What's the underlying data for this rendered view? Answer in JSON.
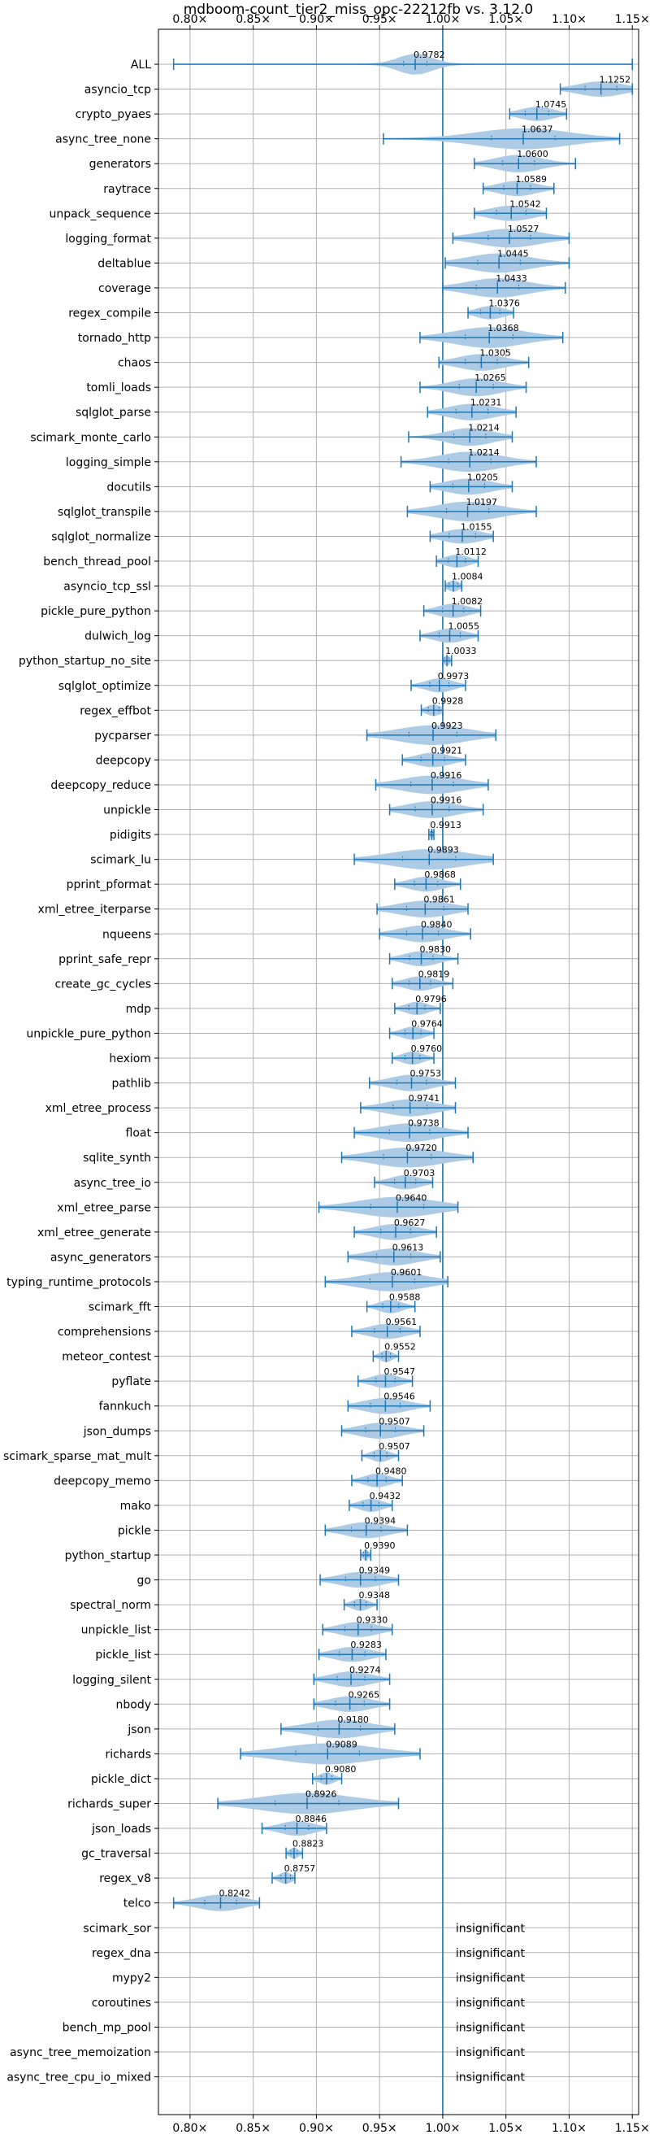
{
  "chart_data": {
    "type": "violin",
    "title": "mdboom-count_tier2_miss_opc-22212fb vs. 3.12.0",
    "xlim": [
      0.775,
      1.155
    ],
    "x_ticks": [
      {
        "value": 0.8,
        "label": "0.80×"
      },
      {
        "value": 0.85,
        "label": "0.85×"
      },
      {
        "value": 0.9,
        "label": "0.90×"
      },
      {
        "value": 0.95,
        "label": "0.95×"
      },
      {
        "value": 1.0,
        "label": "1.00×"
      },
      {
        "value": 1.05,
        "label": "1.05×"
      },
      {
        "value": 1.1,
        "label": "1.10×"
      },
      {
        "value": 1.15,
        "label": "1.15×"
      }
    ],
    "reference_line": 1.0,
    "grid": true,
    "insignificant_text": "insignificant",
    "benchmarks": [
      {
        "name": "ALL",
        "value": 0.9782,
        "min": 0.787,
        "max": 1.15,
        "w": 0.022
      },
      {
        "name": "asyncio_tcp",
        "value": 1.1252,
        "min": 1.093,
        "max": 1.15,
        "w": 0.03
      },
      {
        "name": "crypto_pyaes",
        "value": 1.0745,
        "min": 1.053,
        "max": 1.098,
        "w": 0.022
      },
      {
        "name": "async_tree_none",
        "value": 1.0637,
        "min": 0.953,
        "max": 1.14,
        "w": 0.06
      },
      {
        "name": "generators",
        "value": 1.06,
        "min": 1.025,
        "max": 1.105,
        "w": 0.03
      },
      {
        "name": "raytrace",
        "value": 1.0589,
        "min": 1.032,
        "max": 1.088,
        "w": 0.025
      },
      {
        "name": "unpack_sequence",
        "value": 1.0542,
        "min": 1.025,
        "max": 1.082,
        "w": 0.028
      },
      {
        "name": "logging_format",
        "value": 1.0527,
        "min": 1.008,
        "max": 1.1,
        "w": 0.04
      },
      {
        "name": "deltablue",
        "value": 1.0445,
        "min": 1.002,
        "max": 1.1,
        "w": 0.04
      },
      {
        "name": "coverage",
        "value": 1.0433,
        "min": 1.0,
        "max": 1.097,
        "w": 0.04
      },
      {
        "name": "regex_compile",
        "value": 1.0376,
        "min": 1.02,
        "max": 1.056,
        "w": 0.018
      },
      {
        "name": "tornado_http",
        "value": 1.0368,
        "min": 0.982,
        "max": 1.095,
        "w": 0.045
      },
      {
        "name": "chaos",
        "value": 1.0305,
        "min": 0.997,
        "max": 1.068,
        "w": 0.03
      },
      {
        "name": "tomli_loads",
        "value": 1.0265,
        "min": 0.982,
        "max": 1.066,
        "w": 0.032
      },
      {
        "name": "sqlglot_parse",
        "value": 1.0231,
        "min": 0.988,
        "max": 1.058,
        "w": 0.03
      },
      {
        "name": "scimark_monte_carlo",
        "value": 1.0214,
        "min": 0.973,
        "max": 1.055,
        "w": 0.03
      },
      {
        "name": "logging_simple",
        "value": 1.0214,
        "min": 0.967,
        "max": 1.074,
        "w": 0.04
      },
      {
        "name": "docutils",
        "value": 1.0205,
        "min": 0.99,
        "max": 1.055,
        "w": 0.03
      },
      {
        "name": "sqlglot_transpile",
        "value": 1.0197,
        "min": 0.972,
        "max": 1.074,
        "w": 0.04
      },
      {
        "name": "sqlglot_normalize",
        "value": 1.0155,
        "min": 0.99,
        "max": 1.04,
        "w": 0.025
      },
      {
        "name": "bench_thread_pool",
        "value": 1.0112,
        "min": 0.995,
        "max": 1.028,
        "w": 0.016
      },
      {
        "name": "asyncio_tcp_ssl",
        "value": 1.0084,
        "min": 1.002,
        "max": 1.015,
        "w": 0.008
      },
      {
        "name": "pickle_pure_python",
        "value": 1.0082,
        "min": 0.985,
        "max": 1.03,
        "w": 0.02
      },
      {
        "name": "dulwich_log",
        "value": 1.0055,
        "min": 0.982,
        "max": 1.028,
        "w": 0.02
      },
      {
        "name": "python_startup_no_site",
        "value": 1.0033,
        "min": 1.0,
        "max": 1.007,
        "w": 0.004
      },
      {
        "name": "sqlglot_optimize",
        "value": 0.9973,
        "min": 0.975,
        "max": 1.018,
        "w": 0.018
      },
      {
        "name": "regex_effbot",
        "value": 0.9928,
        "min": 0.983,
        "max": 1.0,
        "w": 0.01
      },
      {
        "name": "pycparser",
        "value": 0.9923,
        "min": 0.94,
        "max": 1.042,
        "w": 0.045
      },
      {
        "name": "deepcopy",
        "value": 0.9921,
        "min": 0.968,
        "max": 1.018,
        "w": 0.022
      },
      {
        "name": "deepcopy_reduce",
        "value": 0.9916,
        "min": 0.947,
        "max": 1.036,
        "w": 0.04
      },
      {
        "name": "unpickle",
        "value": 0.9916,
        "min": 0.958,
        "max": 1.032,
        "w": 0.032
      },
      {
        "name": "pidigits",
        "value": 0.9913,
        "min": 0.989,
        "max": 0.993,
        "w": 0.002
      },
      {
        "name": "scimark_lu",
        "value": 0.9893,
        "min": 0.93,
        "max": 1.04,
        "w": 0.05
      },
      {
        "name": "pprint_pformat",
        "value": 0.9868,
        "min": 0.962,
        "max": 1.014,
        "w": 0.022
      },
      {
        "name": "xml_etree_iterparse",
        "value": 0.9861,
        "min": 0.948,
        "max": 1.02,
        "w": 0.035
      },
      {
        "name": "nqueens",
        "value": 0.984,
        "min": 0.95,
        "max": 1.022,
        "w": 0.03
      },
      {
        "name": "pprint_safe_repr",
        "value": 0.983,
        "min": 0.958,
        "max": 1.012,
        "w": 0.022
      },
      {
        "name": "create_gc_cycles",
        "value": 0.9819,
        "min": 0.96,
        "max": 1.008,
        "w": 0.02
      },
      {
        "name": "mdp",
        "value": 0.9796,
        "min": 0.962,
        "max": 0.998,
        "w": 0.015
      },
      {
        "name": "unpickle_pure_python",
        "value": 0.9764,
        "min": 0.958,
        "max": 0.993,
        "w": 0.015
      },
      {
        "name": "hexiom",
        "value": 0.976,
        "min": 0.96,
        "max": 0.993,
        "w": 0.014
      },
      {
        "name": "pathlib",
        "value": 0.9753,
        "min": 0.942,
        "max": 1.01,
        "w": 0.028
      },
      {
        "name": "xml_etree_process",
        "value": 0.9741,
        "min": 0.935,
        "max": 1.01,
        "w": 0.032
      },
      {
        "name": "float",
        "value": 0.9738,
        "min": 0.93,
        "max": 1.02,
        "w": 0.038
      },
      {
        "name": "sqlite_synth",
        "value": 0.972,
        "min": 0.92,
        "max": 1.024,
        "w": 0.045
      },
      {
        "name": "async_tree_io",
        "value": 0.9703,
        "min": 0.946,
        "max": 0.992,
        "w": 0.02
      },
      {
        "name": "xml_etree_parse",
        "value": 0.964,
        "min": 0.902,
        "max": 1.012,
        "w": 0.05
      },
      {
        "name": "xml_etree_generate",
        "value": 0.9627,
        "min": 0.93,
        "max": 0.995,
        "w": 0.028
      },
      {
        "name": "async_generators",
        "value": 0.9613,
        "min": 0.925,
        "max": 0.998,
        "w": 0.032
      },
      {
        "name": "typing_runtime_protocols",
        "value": 0.9601,
        "min": 0.907,
        "max": 1.004,
        "w": 0.042
      },
      {
        "name": "scimark_fft",
        "value": 0.9588,
        "min": 0.94,
        "max": 0.978,
        "w": 0.015
      },
      {
        "name": "comprehensions",
        "value": 0.9561,
        "min": 0.928,
        "max": 0.982,
        "w": 0.024
      },
      {
        "name": "meteor_contest",
        "value": 0.9552,
        "min": 0.945,
        "max": 0.965,
        "w": 0.008
      },
      {
        "name": "pyflate",
        "value": 0.9547,
        "min": 0.933,
        "max": 0.976,
        "w": 0.018
      },
      {
        "name": "fannkuch",
        "value": 0.9546,
        "min": 0.925,
        "max": 0.99,
        "w": 0.028
      },
      {
        "name": "json_dumps",
        "value": 0.9507,
        "min": 0.92,
        "max": 0.985,
        "w": 0.028
      },
      {
        "name": "scimark_sparse_mat_mult",
        "value": 0.9507,
        "min": 0.936,
        "max": 0.965,
        "w": 0.012
      },
      {
        "name": "deepcopy_memo",
        "value": 0.948,
        "min": 0.928,
        "max": 0.968,
        "w": 0.017
      },
      {
        "name": "mako",
        "value": 0.9432,
        "min": 0.926,
        "max": 0.96,
        "w": 0.015
      },
      {
        "name": "pickle",
        "value": 0.9394,
        "min": 0.907,
        "max": 0.972,
        "w": 0.028
      },
      {
        "name": "python_startup",
        "value": 0.939,
        "min": 0.935,
        "max": 0.943,
        "w": 0.004
      },
      {
        "name": "go",
        "value": 0.9349,
        "min": 0.903,
        "max": 0.965,
        "w": 0.028
      },
      {
        "name": "spectral_norm",
        "value": 0.9348,
        "min": 0.922,
        "max": 0.948,
        "w": 0.011
      },
      {
        "name": "unpickle_list",
        "value": 0.933,
        "min": 0.905,
        "max": 0.96,
        "w": 0.025
      },
      {
        "name": "pickle_list",
        "value": 0.9283,
        "min": 0.902,
        "max": 0.955,
        "w": 0.024
      },
      {
        "name": "logging_silent",
        "value": 0.9274,
        "min": 0.898,
        "max": 0.958,
        "w": 0.026
      },
      {
        "name": "nbody",
        "value": 0.9265,
        "min": 0.898,
        "max": 0.958,
        "w": 0.027
      },
      {
        "name": "json",
        "value": 0.918,
        "min": 0.872,
        "max": 0.962,
        "w": 0.04
      },
      {
        "name": "richards",
        "value": 0.9089,
        "min": 0.84,
        "max": 0.982,
        "w": 0.06
      },
      {
        "name": "pickle_dict",
        "value": 0.908,
        "min": 0.897,
        "max": 0.92,
        "w": 0.01
      },
      {
        "name": "richards_super",
        "value": 0.8926,
        "min": 0.822,
        "max": 0.965,
        "w": 0.06
      },
      {
        "name": "json_loads",
        "value": 0.8846,
        "min": 0.857,
        "max": 0.908,
        "w": 0.022
      },
      {
        "name": "gc_traversal",
        "value": 0.8823,
        "min": 0.876,
        "max": 0.889,
        "w": 0.006
      },
      {
        "name": "regex_v8",
        "value": 0.8757,
        "min": 0.865,
        "max": 0.883,
        "w": 0.009
      },
      {
        "name": "telco",
        "value": 0.8242,
        "min": 0.787,
        "max": 0.855,
        "w": 0.03
      },
      {
        "name": "scimark_sor",
        "insignificant": true
      },
      {
        "name": "regex_dna",
        "insignificant": true
      },
      {
        "name": "mypy2",
        "insignificant": true
      },
      {
        "name": "coroutines",
        "insignificant": true
      },
      {
        "name": "bench_mp_pool",
        "insignificant": true
      },
      {
        "name": "async_tree_memoization",
        "insignificant": true
      },
      {
        "name": "async_tree_cpu_io_mixed",
        "insignificant": true
      }
    ]
  },
  "colors": {
    "violin_fill": "#aecbe6",
    "line": "#1f77b4",
    "grid": "#b0b0b0",
    "axis": "#000000"
  }
}
